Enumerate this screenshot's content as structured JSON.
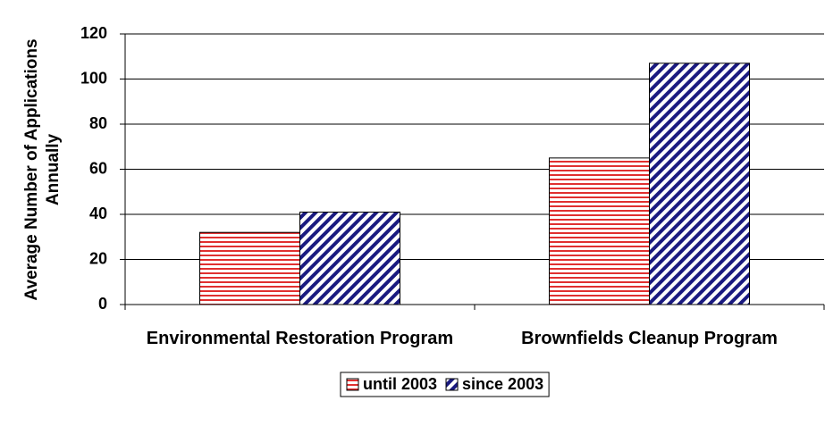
{
  "chart_data": {
    "type": "bar",
    "y_label": "Average Number of Applications Annually",
    "categories": [
      "Environmental Restoration Program",
      "Brownfields Cleanup Program"
    ],
    "series": [
      {
        "name": "until 2003",
        "color": "#e03030",
        "pattern": "horizontal",
        "values": [
          32,
          65
        ]
      },
      {
        "name": "since 2003",
        "color": "#1a1a80",
        "pattern": "diagonal",
        "values": [
          41,
          107
        ]
      }
    ],
    "ylim": [
      0,
      120
    ],
    "yticks": [
      0,
      20,
      40,
      60,
      80,
      100,
      120
    ],
    "grid": true,
    "legend": "bottom"
  }
}
